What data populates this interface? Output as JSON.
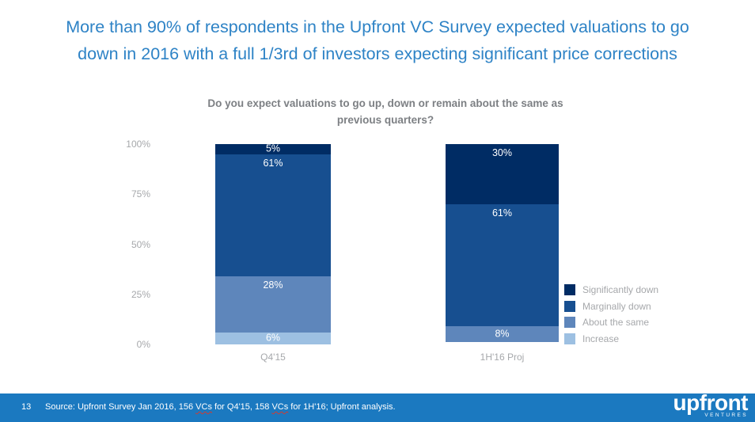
{
  "slide": {
    "title_lines": [
      "More than 90% of respondents in the Upfront VC Survey expected valuations to go",
      "down in 2016 with a full 1/3rd of investors expecting significant price corrections"
    ],
    "title_color": "#2e83c6"
  },
  "chart_data": {
    "type": "bar",
    "stacked": true,
    "title": "Do you expect valuations to go up, down or remain about the same as previous quarters?",
    "title_lines": [
      "Do you expect valuations to go up, down or remain about the same as",
      "previous quarters?"
    ],
    "categories": [
      "Q4'15",
      "1H'16 Proj"
    ],
    "series": [
      {
        "name": "Significantly down",
        "color": "#002c64",
        "values": [
          5,
          30
        ],
        "labels": [
          "5%",
          "30%"
        ]
      },
      {
        "name": "Marginally down",
        "color": "#174f90",
        "values": [
          61,
          61
        ],
        "labels": [
          "61%",
          "61%"
        ]
      },
      {
        "name": "About the same",
        "color": "#5e86bb",
        "values": [
          28,
          8
        ],
        "labels": [
          "28%",
          "8%"
        ]
      },
      {
        "name": "Increase",
        "color": "#9dc0e2",
        "values": [
          6,
          0
        ],
        "labels": [
          "6%",
          ""
        ]
      }
    ],
    "y_ticks": [
      "100%",
      "75%",
      "50%",
      "25%",
      "0%"
    ],
    "ylim": [
      0,
      100
    ],
    "grid": false,
    "legend_position": "right",
    "label_color": "#ffffff"
  },
  "footer": {
    "page_number": "13",
    "source_parts": [
      "Source: Upfront Survey Jan 2016, 156 ",
      "VCs",
      " for Q4'15, 158 ",
      "VCs",
      " for 1H'16; Upfront analysis."
    ],
    "bar_color": "#1b79c0"
  },
  "logo": {
    "brand": "upfront",
    "subtext": "VENTURES"
  }
}
